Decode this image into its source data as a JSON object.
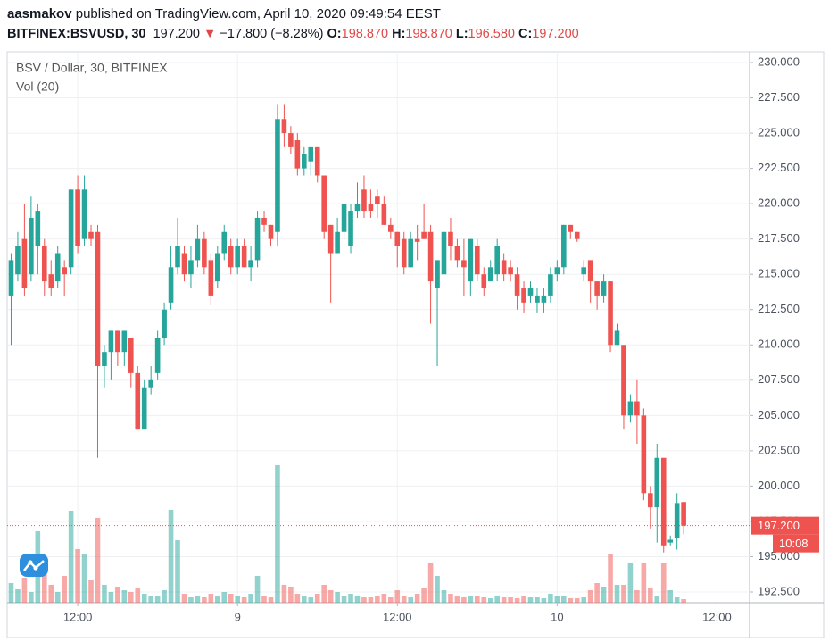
{
  "header": {
    "author": "aasmakov",
    "published": "published on TradingView.com, April 10, 2020 09:49:54 EEST"
  },
  "legend": {
    "symbol": "BITFINEX:BSVUSD, 30",
    "last": "197.200",
    "arrow": "▼",
    "change": "−17.800 (−8.28%)",
    "open_label": "O:",
    "open": "198.870",
    "high_label": "H:",
    "high": "198.870",
    "low_label": "L:",
    "low": "196.580",
    "close_label": "C:",
    "close": "197.200"
  },
  "chart_data": {
    "type": "candlestick",
    "title": "BSV / Dollar, 30, BITFINEX",
    "volume_label": "Vol (20)",
    "up_color": "#26a69a",
    "down_color": "#ef5350",
    "grid": true,
    "ylim": [
      191.74,
      230.76
    ],
    "yticks": [
      {
        "value": 192.5,
        "label": "192.500"
      },
      {
        "value": 195,
        "label": "195.000"
      },
      {
        "value": 197.5,
        "label": "197.500"
      },
      {
        "value": 200,
        "label": "200.000"
      },
      {
        "value": 202.5,
        "label": "202.500"
      },
      {
        "value": 205,
        "label": "205.000"
      },
      {
        "value": 207.5,
        "label": "207.500"
      },
      {
        "value": 210,
        "label": "210.000"
      },
      {
        "value": 212.5,
        "label": "212.500"
      },
      {
        "value": 215,
        "label": "215.000"
      },
      {
        "value": 217.5,
        "label": "217.500"
      },
      {
        "value": 220,
        "label": "220.000"
      },
      {
        "value": 222.5,
        "label": "222.500"
      },
      {
        "value": 225,
        "label": "225.000"
      },
      {
        "value": 227.5,
        "label": "227.500"
      },
      {
        "value": 230,
        "label": "230.000"
      }
    ],
    "xlim": [
      -0.6,
      110.9
    ],
    "xticks": [
      {
        "value": 10,
        "label": "12:00"
      },
      {
        "value": 34,
        "label": "9"
      },
      {
        "value": 58,
        "label": "12:00"
      },
      {
        "value": 82,
        "label": "10"
      },
      {
        "value": 106,
        "label": "12:00"
      }
    ],
    "last_price": {
      "value": 197.2,
      "label": "197.200"
    },
    "countdown": "10:08",
    "open": [
      213.5,
      215,
      217.5,
      215,
      217,
      217,
      215,
      214.5,
      215.5,
      215.5,
      221,
      217.5,
      218,
      218,
      208.5,
      209.5,
      211,
      209.5,
      210.5,
      208,
      204,
      207,
      208,
      210.5,
      213,
      215.5,
      216.5,
      215,
      216,
      217.5,
      216,
      214.5,
      216.5,
      217,
      215.5,
      217,
      215.5,
      216,
      219,
      218.5,
      218,
      226,
      225,
      224.5,
      222.5,
      223,
      224,
      222,
      218.5,
      216.5,
      218,
      217,
      219.5,
      221,
      220,
      220.5,
      220,
      218.5,
      218,
      217.5,
      215.5,
      217.5,
      218,
      218,
      214,
      215,
      218,
      217,
      216,
      214.5,
      217,
      215,
      214.5,
      215,
      216,
      215.5,
      215,
      214,
      213.5,
      213,
      213,
      213.5,
      215,
      215.5,
      218.5,
      218,
      215,
      216,
      214.5,
      213.5,
      214.5,
      210,
      210,
      205,
      206,
      205,
      199.5,
      198.5,
      202,
      196,
      196.3,
      198.87
    ],
    "high": [
      216.5,
      218,
      220,
      220.5,
      220,
      217.5,
      216,
      217,
      216,
      221,
      222,
      222,
      218.5,
      218.5,
      210,
      211,
      211,
      211,
      210.5,
      208.5,
      207.5,
      208.5,
      211,
      213,
      217,
      219,
      217,
      217,
      218.5,
      218,
      216.5,
      217,
      218.5,
      217.5,
      217.5,
      217.5,
      217,
      219.5,
      219.5,
      218.5,
      227,
      227,
      225.5,
      225,
      224,
      224,
      224,
      222,
      218.5,
      219,
      220,
      220,
      221.5,
      222,
      221,
      221,
      220.5,
      219,
      218,
      218,
      218,
      218.5,
      220,
      218.5,
      216,
      218.5,
      219,
      217.5,
      217.5,
      217.5,
      217.5,
      215.5,
      216,
      217.5,
      216.5,
      216,
      215.5,
      214.5,
      214.5,
      214,
      214,
      215.5,
      216,
      218.5,
      218.5,
      218,
      216,
      216,
      214.5,
      215,
      214.5,
      211.5,
      210,
      206.5,
      207.5,
      205.5,
      200,
      203,
      202,
      196.5,
      199.5,
      198.87
    ],
    "low": [
      210,
      214.5,
      213.5,
      214.5,
      215,
      213.5,
      213.5,
      214,
      213.5,
      215,
      216.5,
      217,
      217,
      202,
      207,
      207.5,
      208.5,
      208.5,
      207,
      204,
      204,
      206.5,
      207.5,
      210,
      212.5,
      215,
      214.5,
      214,
      215.5,
      215,
      212.8,
      214,
      216,
      215,
      215,
      215.5,
      214.5,
      215.5,
      218,
      217,
      217,
      224,
      223.5,
      222,
      222,
      222,
      221.5,
      217.5,
      213,
      216.5,
      217.5,
      216.5,
      219,
      219,
      219,
      219,
      218.5,
      217.5,
      215.5,
      215,
      215.5,
      216,
      217.5,
      211.5,
      208.5,
      214.5,
      216,
      215.5,
      213.5,
      213.5,
      214.5,
      213.5,
      214.5,
      214.5,
      214.5,
      214.5,
      212.5,
      212.3,
      213,
      212.3,
      212.3,
      213,
      214.5,
      215,
      217.5,
      217.3,
      214.5,
      213,
      212.5,
      213,
      209.5,
      210,
      204,
      204.5,
      203,
      199,
      197,
      196,
      195.3,
      195.8,
      195.5,
      196.58
    ],
    "close": [
      216,
      217,
      214,
      219,
      219.5,
      214.5,
      214,
      216.5,
      215,
      221,
      217,
      221,
      217.5,
      208.5,
      209.5,
      211,
      209.5,
      211,
      208,
      204,
      207,
      207.5,
      210.5,
      212.5,
      215.5,
      217,
      215,
      216,
      217.5,
      215.5,
      213.5,
      216.5,
      218,
      215.5,
      217,
      215.5,
      216,
      219,
      218.5,
      217.5,
      226,
      225,
      224,
      222.5,
      223.5,
      224,
      222,
      218,
      216.5,
      218,
      220,
      219.5,
      220,
      219.5,
      219.5,
      220,
      218.5,
      218,
      217,
      215.5,
      217.5,
      217.3,
      217.5,
      214.5,
      216,
      218,
      217,
      216,
      215.5,
      217.5,
      215,
      214,
      215.5,
      217,
      215,
      215,
      213.5,
      213,
      214,
      213.5,
      213.5,
      215,
      215.5,
      218.5,
      218,
      217.5,
      215.5,
      214.5,
      213.5,
      214.5,
      210,
      211,
      205,
      206,
      205,
      199.5,
      198.5,
      202,
      195.8,
      196.2,
      198.8,
      197.2
    ],
    "volume": [
      22,
      15,
      28,
      12,
      80,
      45,
      20,
      12,
      30,
      103,
      60,
      55,
      25,
      95,
      20,
      12,
      18,
      14,
      12,
      16,
      10,
      8,
      7,
      14,
      104,
      70,
      10,
      6,
      8,
      6,
      10,
      8,
      12,
      10,
      8,
      6,
      10,
      30,
      8,
      6,
      154,
      20,
      18,
      10,
      8,
      6,
      10,
      20,
      14,
      12,
      8,
      10,
      8,
      6,
      6,
      8,
      10,
      6,
      14,
      8,
      6,
      10,
      16,
      45,
      30,
      14,
      10,
      8,
      6,
      8,
      8,
      6,
      5,
      8,
      6,
      6,
      5,
      8,
      6,
      6,
      5,
      10,
      8,
      8,
      5,
      5,
      6,
      14,
      22,
      18,
      55,
      20,
      20,
      45,
      14,
      45,
      16,
      8,
      45,
      14,
      6,
      4
    ]
  }
}
